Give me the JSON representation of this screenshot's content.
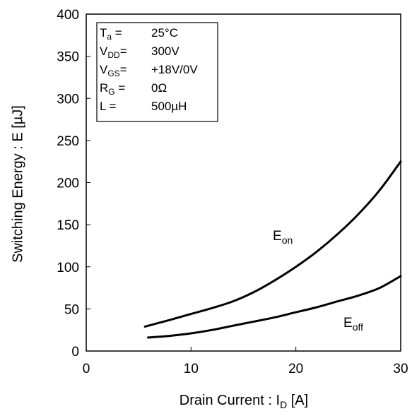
{
  "chart_data": {
    "type": "line",
    "xlabel": {
      "main": "Drain Current : I",
      "sub": "D",
      "unit": " [A]"
    },
    "ylabel": "Switching Energy : E [µJ]",
    "xlim": [
      0,
      30
    ],
    "ylim": [
      0,
      400
    ],
    "x_ticks": [
      "0",
      "10",
      "20",
      "30"
    ],
    "y_ticks": [
      "0",
      "50",
      "100",
      "150",
      "200",
      "250",
      "300",
      "350",
      "400"
    ],
    "grid": false,
    "conditions": [
      {
        "name_main": "T",
        "name_sub": "a",
        "eq": " =",
        "value": "25°C"
      },
      {
        "name_main": "V",
        "name_sub": "DD",
        "eq": "=",
        "value": "300V"
      },
      {
        "name_main": "V",
        "name_sub": "GS",
        "eq": "=",
        "value": "+18V/0V"
      },
      {
        "name_main": "R",
        "name_sub": "G",
        "eq": " =",
        "value": "0Ω"
      },
      {
        "name_main": "L =",
        "name_sub": "",
        "eq": "",
        "value": "500µH"
      }
    ],
    "series": [
      {
        "name": "E_on",
        "label_main": "E",
        "label_sub": "on",
        "x": [
          5.6,
          8,
          10,
          12,
          14,
          16,
          18,
          20,
          22,
          24,
          26,
          28,
          30
        ],
        "y": [
          29,
          37,
          44,
          51,
          59,
          70,
          84,
          100,
          118,
          139,
          163,
          191,
          225
        ]
      },
      {
        "name": "E_off",
        "label_main": "E",
        "label_sub": "off",
        "x": [
          5.9,
          8,
          10,
          12,
          14,
          16,
          18,
          20,
          22,
          24,
          26,
          28,
          30
        ],
        "y": [
          16,
          18,
          21,
          25,
          30,
          35,
          40,
          46,
          52,
          59,
          66,
          75,
          89
        ]
      }
    ]
  }
}
